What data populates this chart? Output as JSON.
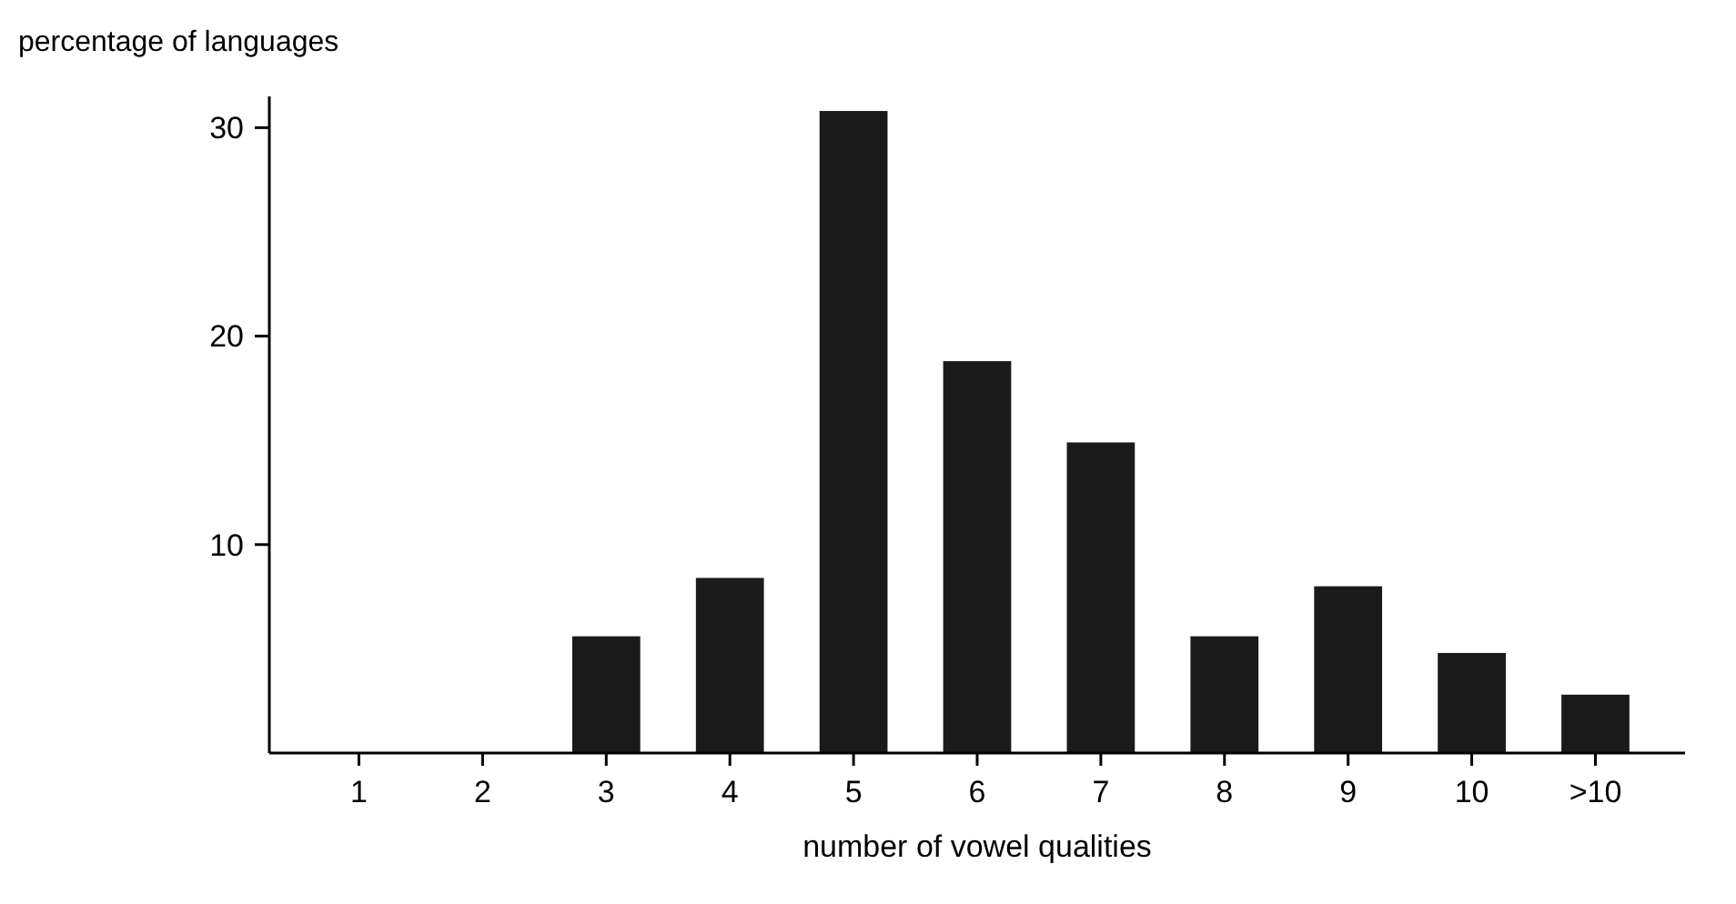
{
  "chart_data": {
    "type": "bar",
    "xlabel": "number of vowel qualities",
    "ylabel": "percentage of languages",
    "categories": [
      "1",
      "2",
      "3",
      "4",
      "5",
      "6",
      "7",
      "8",
      "9",
      "10",
      ">10"
    ],
    "values": [
      0,
      0,
      5.6,
      8.4,
      30.8,
      18.8,
      14.9,
      5.6,
      8.0,
      4.8,
      2.8
    ],
    "color": "#1a1a1a",
    "ylim": [
      0,
      31.5
    ],
    "yticks": [
      10,
      20,
      30
    ],
    "grid": false
  }
}
